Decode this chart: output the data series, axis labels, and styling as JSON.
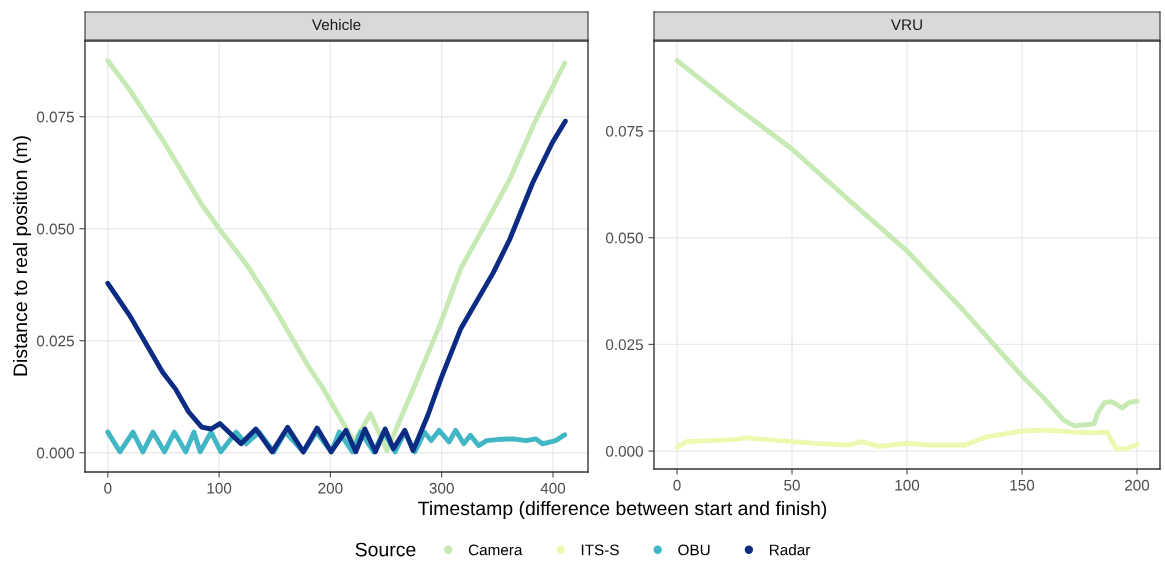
{
  "chart_data": [
    {
      "type": "line",
      "title": "Vehicle",
      "xlabel": "Timestamp (difference between start and finish)",
      "ylabel": "Distance to real position (m)",
      "legend_title": "Source",
      "legend": "bottom",
      "grid": true,
      "xlim": [
        -20.5,
        431.5
      ],
      "xticks": [
        0,
        100,
        200,
        300,
        400
      ],
      "ylim": [
        -0.0043,
        0.0919
      ],
      "yticks": [
        {
          "value": 0,
          "label": "0.000"
        },
        {
          "value": 0.025,
          "label": "0.025"
        },
        {
          "value": 0.05,
          "label": "0.050"
        },
        {
          "value": 0.075,
          "label": "0.075"
        }
      ],
      "series": [
        {
          "name": "Camera",
          "color": "#c7e9b4",
          "x": [
            0,
            19.7,
            49.1,
            84.4,
            100,
            125.6,
            152.1,
            181.6,
            191.9,
            221.3,
            236,
            250.8,
            275.8,
            299.3,
            317,
            346.4,
            361.1,
            384.6,
            410.6
          ],
          "values": [
            0.0875,
            0.081,
            0.0699,
            0.0554,
            0.05,
            0.0417,
            0.0313,
            0.0187,
            0.015,
            0.0024,
            0.0087,
            0.0005,
            0.015,
            0.0291,
            0.041,
            0.0543,
            0.061,
            0.0743,
            0.087
          ]
        },
        {
          "name": "OBU",
          "color": "#41b6c4",
          "x": [
            0,
            10.9,
            22.6,
            31.5,
            40.6,
            50.9,
            59.8,
            70,
            77.4,
            83,
            92.8,
            101.6,
            115.3,
            124.2,
            136,
            149.2,
            159.5,
            175.7,
            187.5,
            200.7,
            208,
            219.8,
            227.2,
            239,
            247.8,
            258.1,
            266.9,
            275.8,
            284.6,
            290.5,
            297.8,
            306.6,
            312.5,
            319.9,
            325.8,
            333.2,
            340.5,
            352.3,
            364.1,
            375.9,
            384.7,
            390.6,
            402.4,
            410.6
          ],
          "values": [
            0.0046,
            0.0002,
            0.0046,
            0.0002,
            0.0046,
            0.0002,
            0.0046,
            0.0002,
            0.0046,
            0.0002,
            0.0046,
            0.0002,
            0.0046,
            0.002,
            0.0046,
            0.0002,
            0.0046,
            0.0002,
            0.0046,
            0.0002,
            0.0046,
            0.0002,
            0.0046,
            0.0002,
            0.0046,
            0.0002,
            0.0046,
            0.0002,
            0.0046,
            0.0027,
            0.005,
            0.0024,
            0.005,
            0.002,
            0.0039,
            0.0016,
            0.0027,
            0.003,
            0.0031,
            0.0027,
            0.0031,
            0.002,
            0.0027,
            0.004
          ]
        },
        {
          "name": "Radar",
          "color": "#0c2c84",
          "x": [
            0,
            19.7,
            49.1,
            60.9,
            72.7,
            84.4,
            92.8,
            100.7,
            119.7,
            133,
            147.7,
            161.6,
            175.7,
            188.1,
            200.7,
            214,
            222.8,
            231,
            240.4,
            249.2,
            256.6,
            266.9,
            274.3,
            287.5,
            299.3,
            317,
            346.4,
            361.1,
            381.7,
            399.4,
            411.1
          ],
          "values": [
            0.0378,
            0.0306,
            0.018,
            0.0142,
            0.0091,
            0.0057,
            0.0053,
            0.0065,
            0.002,
            0.0053,
            0.0002,
            0.0057,
            0.0002,
            0.0055,
            0.0002,
            0.005,
            0.0002,
            0.0053,
            0.0002,
            0.0053,
            0.0009,
            0.005,
            0.0005,
            0.0083,
            0.0165,
            0.0276,
            0.0402,
            0.0476,
            0.0602,
            0.0692,
            0.074
          ]
        }
      ]
    },
    {
      "type": "line",
      "title": "VRU",
      "grid": true,
      "xlim": [
        -10,
        210
      ],
      "xticks": [
        0,
        50,
        100,
        150,
        200
      ],
      "ylim": [
        -0.0042,
        0.0961
      ],
      "yticks": [
        {
          "value": 0,
          "label": "0.000"
        },
        {
          "value": 0.025,
          "label": "0.025"
        },
        {
          "value": 0.05,
          "label": "0.050"
        },
        {
          "value": 0.075,
          "label": "0.075"
        }
      ],
      "series": [
        {
          "name": "Camera",
          "color": "#c7e9b4",
          "x": [
            0,
            25,
            50,
            75,
            100,
            125,
            150,
            159,
            168.2,
            172.9,
            181.4,
            182.9,
            185.9,
            189,
            193.6,
            196.7,
            200
          ],
          "values": [
            0.0915,
            0.0809,
            0.0708,
            0.0587,
            0.0469,
            0.0327,
            0.0176,
            0.0127,
            0.0072,
            0.0059,
            0.0064,
            0.0089,
            0.0114,
            0.0116,
            0.0101,
            0.0114,
            0.0117
          ]
        },
        {
          "name": "ITS-S",
          "color": "#edf8b1",
          "x": [
            0,
            4.2,
            25,
            30,
            50,
            60,
            75,
            80,
            88,
            100,
            110,
            125,
            135,
            150,
            160,
            175,
            182,
            187,
            191,
            195,
            200
          ],
          "values": [
            0.0009,
            0.0022,
            0.0027,
            0.0031,
            0.0022,
            0.0018,
            0.0014,
            0.0022,
            0.0011,
            0.0018,
            0.0014,
            0.0014,
            0.0034,
            0.0047,
            0.0049,
            0.0044,
            0.0043,
            0.0044,
            0.0005,
            0.0005,
            0.0015
          ]
        }
      ]
    }
  ]
}
